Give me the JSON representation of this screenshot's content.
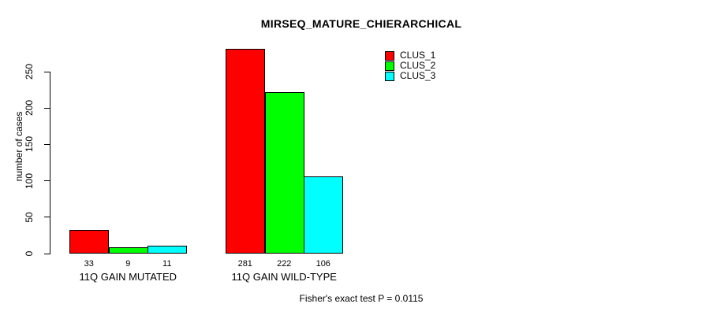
{
  "chart_data": {
    "type": "bar",
    "title": "MIRSEQ_MATURE_CHIERARCHICAL",
    "ylabel": "number of cases",
    "categories": [
      "11Q GAIN MUTATED",
      "11Q GAIN WILD-TYPE"
    ],
    "series": [
      {
        "name": "CLUS_1",
        "color": "#ff0000",
        "values": [
          33,
          281
        ]
      },
      {
        "name": "CLUS_2",
        "color": "#00ff00",
        "values": [
          9,
          222
        ]
      },
      {
        "name": "CLUS_3",
        "color": "#00ffff",
        "values": [
          11,
          106
        ]
      }
    ],
    "yticks": [
      0,
      50,
      100,
      150,
      200,
      250
    ],
    "ylim": [
      0,
      281
    ],
    "bar_value_labels": [
      [
        33,
        9,
        11
      ],
      [
        281,
        222,
        106
      ]
    ],
    "grid": false,
    "legend_position": "top-right",
    "annotation": "Fisher's exact test P = 0.0115"
  },
  "colors": {
    "bar_border": "#000000",
    "axis": "#000000",
    "background": "#ffffff"
  }
}
